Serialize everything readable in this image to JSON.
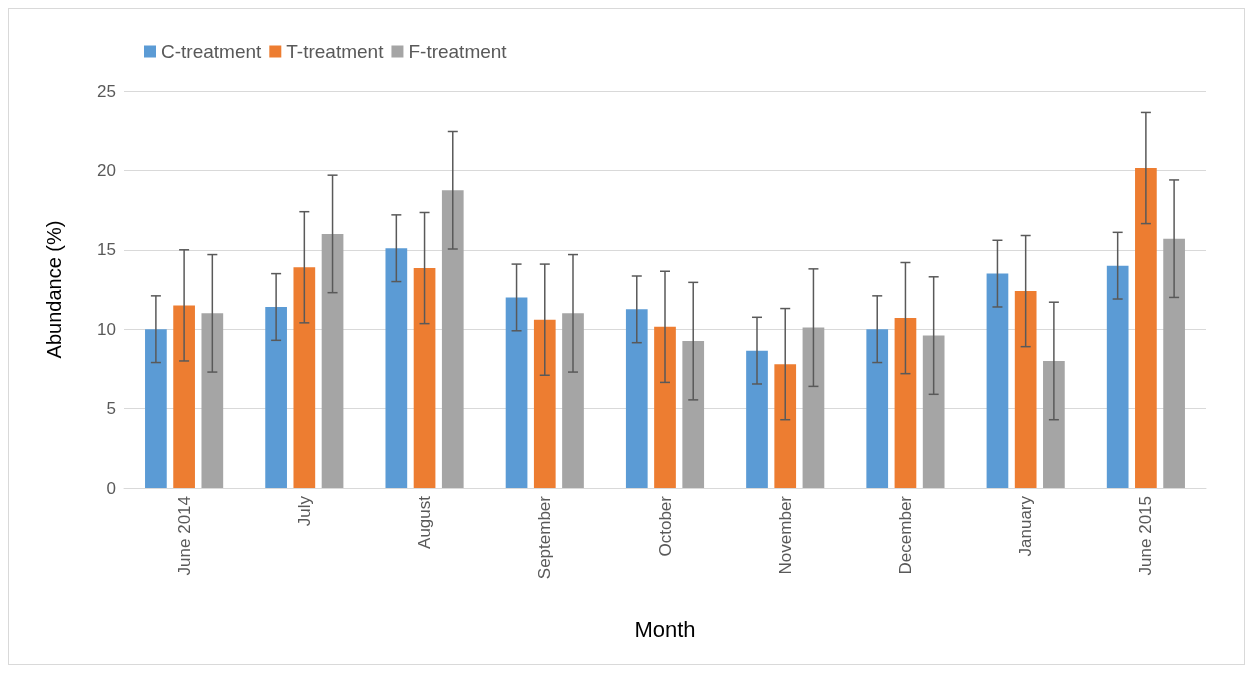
{
  "chart_data": {
    "type": "bar",
    "xlabel": "Month",
    "ylabel": "Abundance (%)",
    "categories": [
      "June 2014",
      "July",
      "August",
      "September",
      "October",
      "November",
      "December",
      "January",
      "June 2015"
    ],
    "series": [
      {
        "name": "C-treatment",
        "color": "#5b9bd5",
        "values": [
          10.0,
          11.4,
          15.1,
          12.0,
          11.25,
          8.65,
          10.0,
          13.5,
          14.0
        ],
        "errors": [
          2.1,
          2.1,
          2.1,
          2.1,
          2.1,
          2.1,
          2.1,
          2.1,
          2.1
        ]
      },
      {
        "name": "T-treatment",
        "color": "#ed7d31",
        "values": [
          11.5,
          13.9,
          13.85,
          10.6,
          10.15,
          7.8,
          10.7,
          12.4,
          20.15
        ],
        "errors": [
          3.5,
          3.5,
          3.5,
          3.5,
          3.5,
          3.5,
          3.5,
          3.5,
          3.5
        ]
      },
      {
        "name": "F-treatment",
        "color": "#a5a5a5",
        "values": [
          11.0,
          16.0,
          18.75,
          11.0,
          9.25,
          10.1,
          9.6,
          8.0,
          15.7
        ],
        "errors": [
          3.7,
          3.7,
          3.7,
          3.7,
          3.7,
          3.7,
          3.7,
          3.7,
          3.7
        ]
      }
    ],
    "ylim": [
      0,
      25
    ],
    "yticks": [
      0,
      5,
      10,
      15,
      20,
      25
    ],
    "grid": "y",
    "legend": "top left"
  }
}
